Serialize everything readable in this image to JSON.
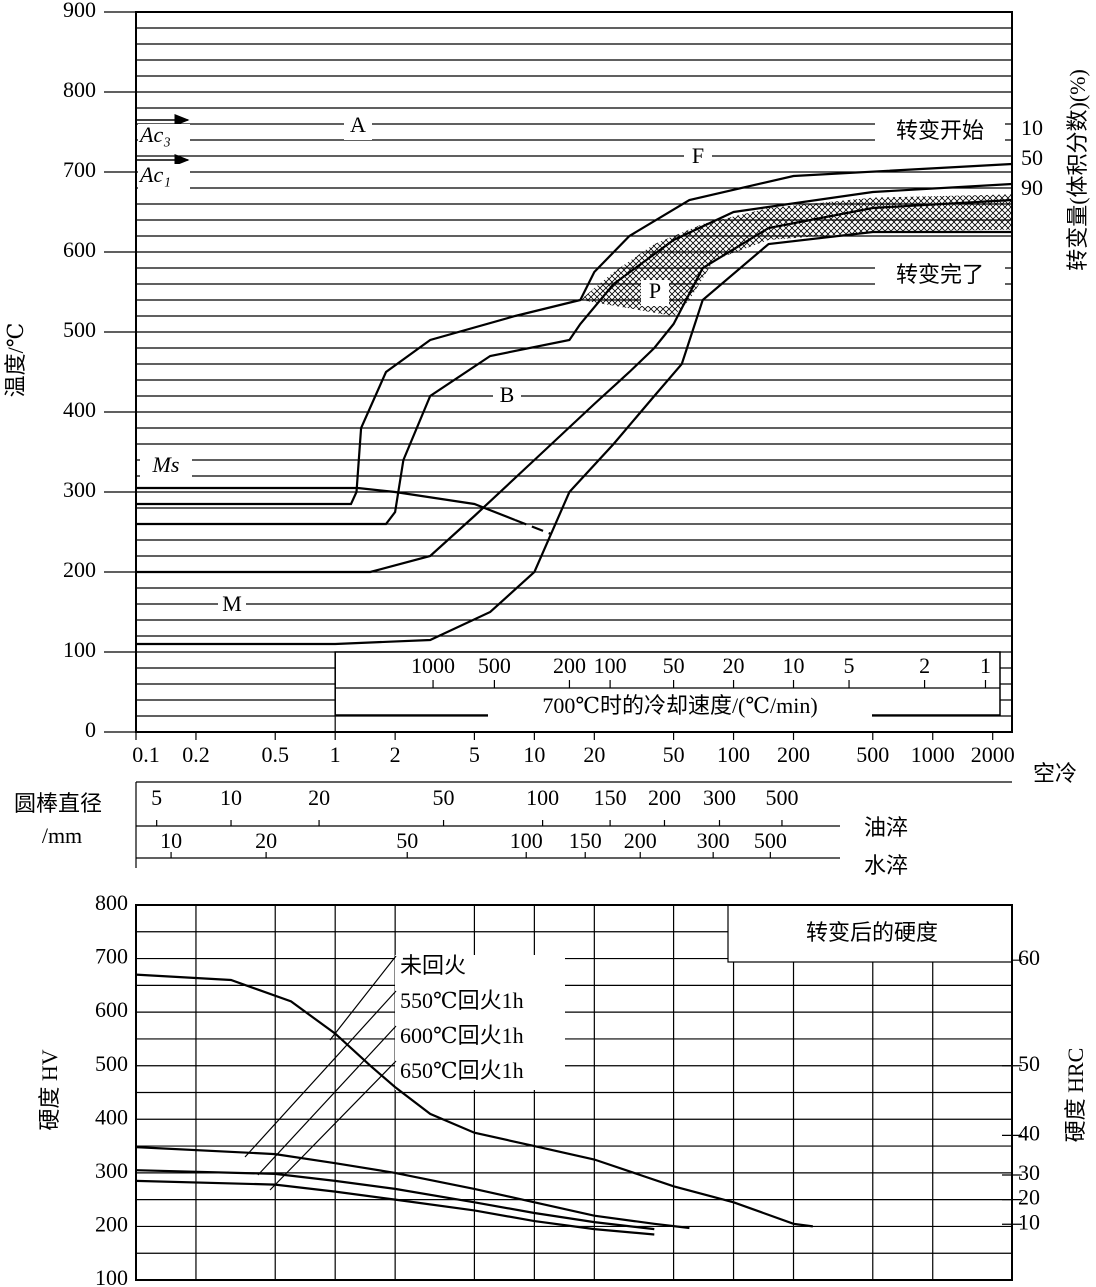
{
  "chart_data": [
    {
      "type": "line",
      "color": "#000000",
      "ylabel": "温度/℃",
      "y2label": "转变量(体积分数)(%)",
      "xlim": [
        0.1,
        2500
      ],
      "log_x": true,
      "xticks": [
        0.1,
        0.2,
        0.5,
        1,
        2,
        5,
        10,
        20,
        50,
        100,
        200,
        500,
        1000,
        2000
      ],
      "ylim": [
        0,
        900
      ],
      "yticks": [
        0,
        100,
        200,
        300,
        400,
        500,
        600,
        700,
        800,
        900
      ],
      "grid_yticks": [
        20,
        40,
        60,
        80,
        120,
        140,
        160,
        180,
        220,
        240,
        260,
        280,
        320,
        340,
        360,
        380,
        420,
        440,
        460,
        480,
        520,
        540,
        560,
        580,
        620,
        640,
        660,
        680,
        720,
        740,
        760,
        780,
        820,
        840,
        860,
        880
      ],
      "series": [
        {
          "x": [
            0.1,
            1.2,
            1.28,
            1.35,
            1.8,
            3,
            8,
            17,
            20,
            30,
            60,
            200,
            2500
          ],
          "values": [
            285,
            285,
            300,
            380,
            450,
            490,
            520,
            540,
            575,
            620,
            665,
            695,
            710
          ]
        },
        {
          "x": [
            0.1,
            1.8,
            2,
            2.2,
            3,
            6,
            15,
            17,
            25,
            50,
            100,
            500,
            2500
          ],
          "values": [
            260,
            260,
            275,
            340,
            420,
            470,
            490,
            510,
            560,
            615,
            650,
            675,
            685
          ]
        },
        {
          "x": [
            0.1,
            1.5,
            3,
            5,
            10,
            20,
            30,
            40,
            50,
            70,
            150,
            500,
            2500
          ],
          "values": [
            200,
            200,
            220,
            270,
            340,
            410,
            450,
            480,
            510,
            580,
            630,
            655,
            665
          ]
        },
        {
          "x": [
            0.1,
            1,
            3,
            6,
            10,
            15,
            25,
            40,
            55,
            70,
            150,
            500,
            2500
          ],
          "values": [
            110,
            110,
            115,
            150,
            200,
            300,
            360,
            420,
            460,
            540,
            610,
            625,
            625
          ]
        },
        {
          "name": "Ms",
          "x": [
            0.1,
            1.3,
            2,
            5,
            8
          ],
          "values": [
            305,
            305,
            300,
            285,
            265
          ]
        },
        {
          "x": [
            8,
            12
          ],
          "values": [
            265,
            248
          ],
          "dash": true
        }
      ],
      "hatch": {
        "x": [
          17,
          25,
          40,
          70,
          150,
          500,
          2500,
          2500,
          500,
          150,
          80,
          60,
          50
        ],
        "values": [
          540,
          575,
          610,
          635,
          655,
          668,
          672,
          628,
          625,
          615,
          590,
          540,
          520
        ]
      },
      "ac_lines": [
        {
          "label": "Ac₃",
          "value": 765
        },
        {
          "label": "Ac₁",
          "value": 715
        }
      ],
      "annotations": [
        "A",
        "F",
        "P",
        "B",
        "M",
        "转变开始",
        "转变完了",
        "10",
        "50",
        "90"
      ],
      "cooling_rate": {
        "label": "700℃时的冷却速度/(℃/min)",
        "values": [
          1000,
          500,
          200,
          100,
          50,
          20,
          10,
          5,
          2,
          1
        ],
        "x": [
          3.1,
          6.3,
          15,
          24,
          50,
          100,
          200,
          380,
          910,
          1840
        ]
      },
      "bar_diameter": {
        "label": "圆棒直径",
        "unit": "/mm",
        "air": "空冷",
        "oil": {
          "name": "油淬",
          "values": [
            5,
            10,
            20,
            50,
            100,
            150,
            200,
            300,
            500
          ],
          "x": [
            0.127,
            0.3,
            0.83,
            3.5,
            11,
            24,
            45,
            85,
            175
          ]
        },
        "water": {
          "name": "水淬",
          "values": [
            10,
            20,
            50,
            100,
            150,
            200,
            300,
            500
          ],
          "x": [
            0.15,
            0.45,
            2.3,
            9.1,
            18,
            34,
            79,
            153
          ]
        }
      }
    },
    {
      "type": "line",
      "color": "#000000",
      "title": "转变后的硬度",
      "ylabel": "硬度 HV",
      "y2label": "硬度 HRC",
      "xlim": [
        0.1,
        2500
      ],
      "log_x": true,
      "xgrid": [
        0.2,
        0.5,
        1,
        2,
        5,
        10,
        20,
        50,
        100,
        200,
        500,
        1000
      ],
      "ylim": [
        100,
        800
      ],
      "yticks": [
        100,
        200,
        300,
        400,
        500,
        600,
        700,
        800
      ],
      "ygrid": [
        150,
        250,
        350,
        450,
        550,
        650,
        750
      ],
      "hrc": {
        "values": [
          60,
          50,
          40,
          30,
          20,
          10
        ],
        "hv": [
          697,
          500,
          370,
          296,
          250,
          204
        ]
      },
      "series": [
        {
          "name": "未回火",
          "x": [
            0.1,
            0.3,
            0.6,
            1,
            1.5,
            2,
            3,
            5,
            10,
            20,
            50,
            100,
            200,
            250
          ],
          "values": [
            670,
            660,
            620,
            560,
            500,
            460,
            410,
            375,
            350,
            325,
            275,
            245,
            205,
            200
          ]
        },
        {
          "name": "550℃回火1h",
          "x": [
            0.1,
            0.5,
            1,
            2,
            5,
            10,
            20,
            40,
            60
          ],
          "values": [
            348,
            335,
            318,
            300,
            270,
            245,
            220,
            205,
            197
          ]
        },
        {
          "name": "600℃回火1h",
          "x": [
            0.1,
            0.5,
            1,
            2,
            5,
            10,
            20,
            40
          ],
          "values": [
            305,
            298,
            285,
            270,
            245,
            225,
            208,
            195
          ]
        },
        {
          "name": "650℃回火1h",
          "x": [
            0.1,
            0.5,
            1,
            2,
            5,
            10,
            20,
            40
          ],
          "values": [
            285,
            278,
            265,
            250,
            230,
            210,
            195,
            185
          ]
        }
      ]
    }
  ]
}
